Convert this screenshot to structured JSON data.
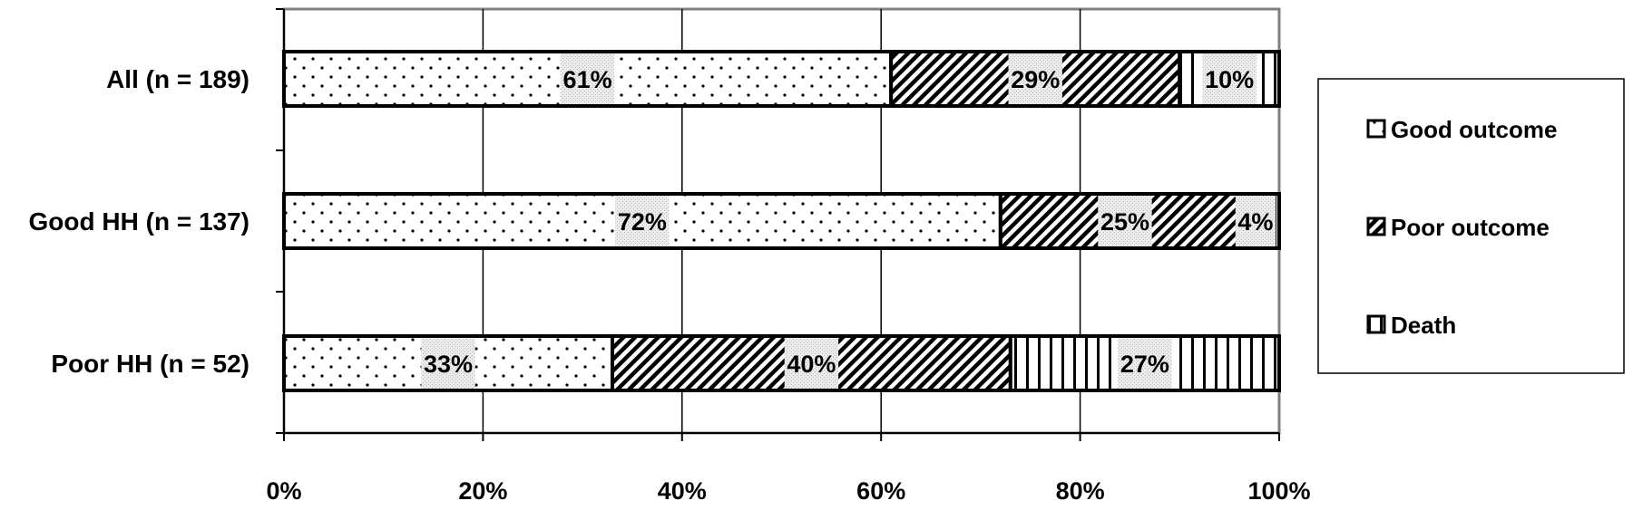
{
  "chart_data": {
    "type": "bar",
    "orientation": "horizontal",
    "stacked": true,
    "percent": true,
    "categories": [
      "All (n = 189)",
      "Good HH (n = 137)",
      "Poor HH (n = 52)"
    ],
    "series": [
      {
        "name": "Good outcome",
        "values": [
          61,
          72,
          33
        ],
        "labels": [
          "61%",
          "72%",
          "33%"
        ],
        "pattern": "dots"
      },
      {
        "name": "Poor outcome",
        "values": [
          29,
          25,
          40
        ],
        "labels": [
          "29%",
          "25%",
          "40%"
        ],
        "pattern": "diagonal"
      },
      {
        "name": "Death",
        "values": [
          10,
          4,
          27
        ],
        "labels": [
          "10%",
          "4%",
          "27%"
        ],
        "pattern": "vertical"
      }
    ],
    "x_ticks": [
      "0%",
      "20%",
      "40%",
      "60%",
      "80%",
      "100%"
    ],
    "xlim": [
      0,
      100
    ],
    "grid": true,
    "legend_position": "right",
    "colors": {
      "stroke": "#000000",
      "grid": "#000000",
      "label_bg": "#e6e6e6"
    }
  }
}
